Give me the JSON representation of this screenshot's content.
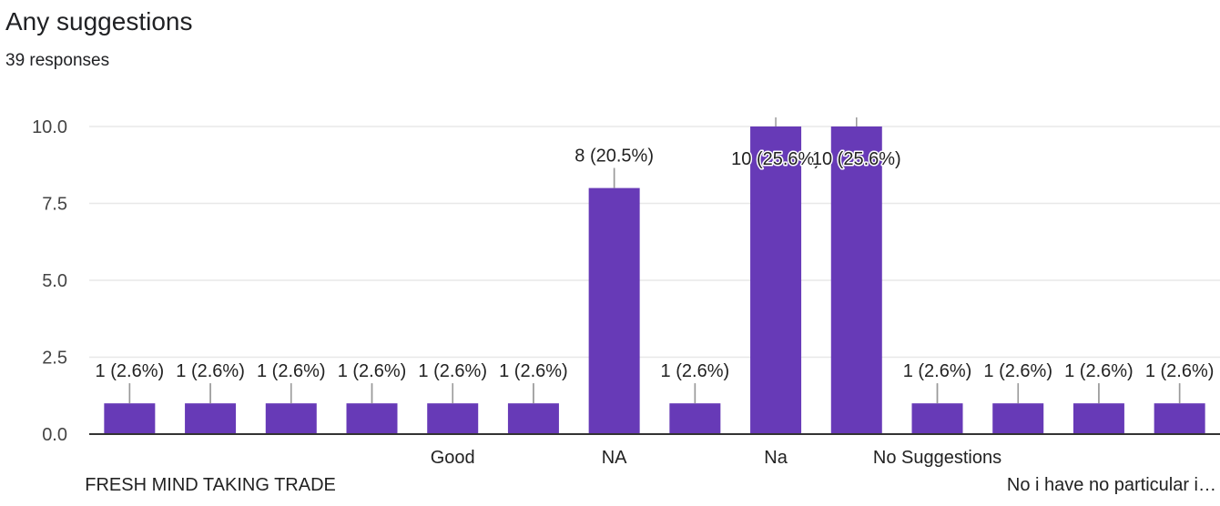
{
  "header": {
    "title": "Any suggestions",
    "subtitle": "39 responses"
  },
  "colors": {
    "bar": "#673ab7",
    "grid": "#e8e8e8",
    "axis": "#333333"
  },
  "chart_data": {
    "type": "bar",
    "title": "Any suggestions",
    "xlabel": "",
    "ylabel": "",
    "ylim": [
      0,
      10
    ],
    "yticks": [
      "0.0",
      "2.5",
      "5.0",
      "7.5",
      "10.0"
    ],
    "grid": true,
    "categories": [
      "",
      "FRESH MIND TAKING TRADE",
      "",
      "",
      "Good",
      "",
      "NA",
      "",
      "Na",
      "",
      "No Suggestions",
      "",
      "",
      "No i have no particular i…"
    ],
    "values": [
      1,
      1,
      1,
      1,
      1,
      1,
      8,
      1,
      10,
      10,
      1,
      1,
      1,
      1
    ],
    "data_labels": [
      "1 (2.6%)",
      "1 (2.6%)",
      "1 (2.6%)",
      "1 (2.6%)",
      "1 (2.6%)",
      "1 (2.6%)",
      "8 (20.5%)",
      "1 (2.6%)",
      "10 (25.6%)",
      "10 (25.6%)",
      "1 (2.6%)",
      "1 (2.6%)",
      "1 (2.6%)",
      "1 (2.6%)"
    ]
  }
}
